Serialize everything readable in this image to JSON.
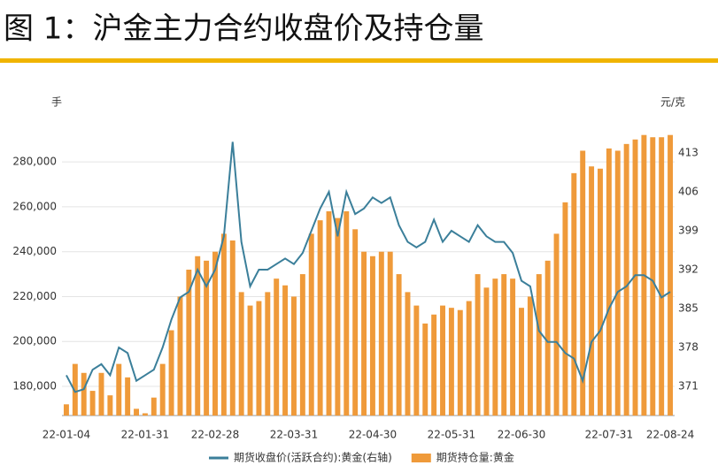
{
  "chart_data": {
    "type": "bar_line",
    "title": "图 1：沪金主力合约收盘价及持仓量",
    "y_label": "手",
    "y2_label": "元/克",
    "categories": [
      "22-01-04",
      null,
      null,
      null,
      null,
      null,
      null,
      null,
      null,
      "22-01-31",
      null,
      null,
      null,
      null,
      null,
      null,
      null,
      "22-02-28",
      null,
      null,
      null,
      null,
      null,
      null,
      null,
      null,
      "22-03-31",
      null,
      null,
      null,
      null,
      null,
      null,
      null,
      null,
      "22-04-30",
      null,
      null,
      null,
      null,
      null,
      null,
      null,
      null,
      "22-05-31",
      null,
      null,
      null,
      null,
      null,
      null,
      null,
      "22-06-30",
      null,
      null,
      null,
      null,
      null,
      null,
      null,
      null,
      null,
      "22-07-31",
      null,
      null,
      null,
      null,
      null,
      null,
      "22-08-24"
    ],
    "series": [
      {
        "name": "期货收盘价(活跃合约):黄金(右轴)",
        "color": "#3b7f9a",
        "axis": "y2",
        "kind": "line",
        "values": [
          373,
          370,
          370.5,
          374,
          375,
          373,
          378,
          377,
          372,
          373,
          374,
          378,
          383,
          387,
          388,
          392,
          389,
          392,
          398,
          415,
          397,
          389,
          392,
          392,
          393,
          394,
          393,
          395,
          399,
          403,
          406,
          398,
          406,
          402,
          403,
          405,
          404,
          405,
          400,
          397,
          396,
          397,
          401,
          397,
          399,
          398,
          397,
          400,
          398,
          397,
          397,
          395,
          390,
          389,
          381,
          379,
          379,
          377,
          376,
          372,
          379,
          381,
          385,
          388,
          389,
          391,
          391,
          390,
          387,
          388
        ]
      },
      {
        "name": "期货持仓量:黄金",
        "color": "#ef9a3a",
        "kind": "bar",
        "values": [
          172000,
          190000,
          186000,
          178000,
          186000,
          176000,
          190000,
          184000,
          170000,
          168000,
          175000,
          190000,
          205000,
          220000,
          232000,
          238000,
          236000,
          240000,
          248000,
          245000,
          222000,
          216000,
          218000,
          222000,
          228000,
          225000,
          220000,
          230000,
          248000,
          254000,
          258000,
          255000,
          258000,
          250000,
          240000,
          238000,
          240000,
          240000,
          230000,
          222000,
          216000,
          208000,
          212000,
          216000,
          215000,
          214000,
          218000,
          230000,
          224000,
          228000,
          230000,
          228000,
          215000,
          220000,
          230000,
          236000,
          248000,
          262000,
          275000,
          285000,
          278000,
          277000,
          286000,
          285000,
          288000,
          290000,
          292000,
          291000,
          291000,
          292000
        ]
      }
    ],
    "ylim": [
      167000,
      297000
    ],
    "yticks": [
      {
        "value": 180000,
        "label": "180,000"
      },
      {
        "value": 200000,
        "label": "200,000"
      },
      {
        "value": 220000,
        "label": "220,000"
      },
      {
        "value": 240000,
        "label": "240,000"
      },
      {
        "value": 260000,
        "label": "260,000"
      },
      {
        "value": 280000,
        "label": "280,000"
      }
    ],
    "y2lim": [
      365.75,
      418.25
    ],
    "y2ticks": [
      371,
      378,
      385,
      392,
      399,
      406,
      413
    ],
    "grid": true
  }
}
